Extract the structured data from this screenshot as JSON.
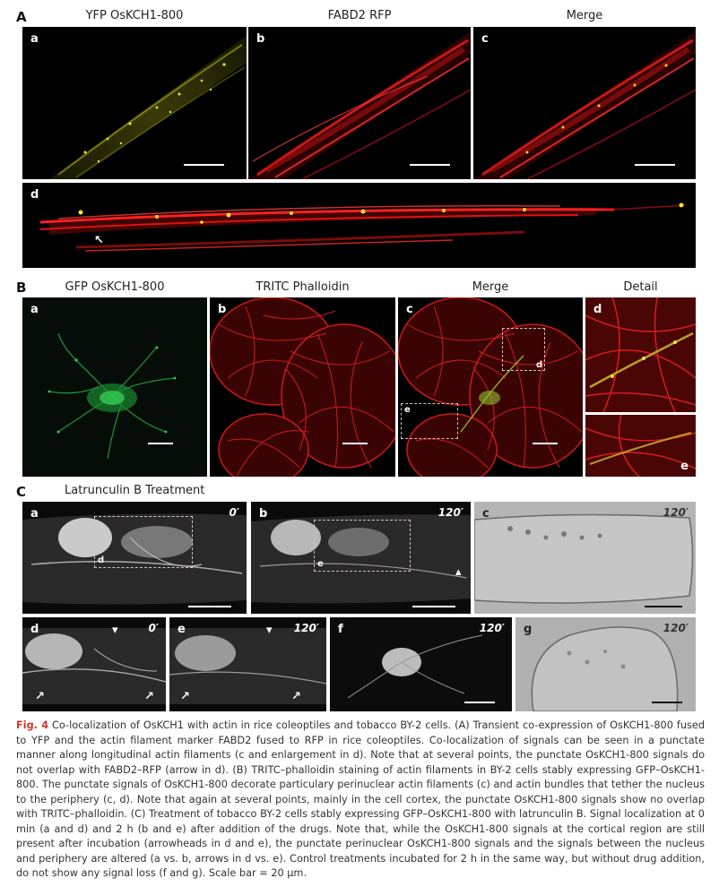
{
  "sectionA": {
    "letter": "A",
    "headers": [
      "YFP OsKCH1-800",
      "FABD2 RFP",
      "Merge"
    ],
    "panels": [
      "a",
      "b",
      "c",
      "d"
    ]
  },
  "sectionB": {
    "letter": "B",
    "headers": [
      "GFP OsKCH1-800",
      "TRITC Phalloidin",
      "Merge",
      "Detail"
    ],
    "panels": [
      "a",
      "b",
      "c",
      "d",
      "e"
    ],
    "box_labels": [
      "d",
      "e"
    ]
  },
  "sectionC": {
    "letter": "C",
    "title": "Latrunculin B Treatment",
    "panels": [
      "a",
      "b",
      "c",
      "d",
      "e",
      "f",
      "g"
    ],
    "times": {
      "a": "0′",
      "b": "120′",
      "c": "120′",
      "d": "0′",
      "e": "120′",
      "f": "120′",
      "g": "120′"
    },
    "box_labels": [
      "d",
      "e"
    ]
  },
  "caption": {
    "figlabel": "Fig. 4",
    "text": " Co-localization of OsKCH1 with actin in rice coleoptiles and tobacco BY-2 cells. (A) Transient co-expression of OsKCH1-800 fused to YFP and the actin filament marker FABD2 fused to RFP in rice coleoptiles. Co-localization of signals can be seen in a punctate manner along longitudinal actin filaments (c and enlargement in d). Note that at several points, the punctate OsKCH1-800 signals do not overlap with FABD2–RFP (arrow in d). (B) TRITC–phalloidin staining of actin filaments in BY-2 cells stably expressing GFP–OsKCH1-800. The punctate signals of OsKCH1-800 decorate particulary perinuclear actin filaments (c) and actin bundles that tether the nucleus to the periphery (c, d). Note that again at several points, mainly in the cell cortex, the punctate OsKCH1-800 signals show no overlap with TRITC–phalloidin. (C) Treatment of tobacco BY-2 cells stably expressing GFP–OsKCH1-800 with latrunculin B. Signal localization at 0 min (a and d) and 2 h (b and e) after addition of the drugs. Note that, while the OsKCH1-800 signals at the cortical region are still present after incubation (arrowheads in d and e), the punctate perinuclear OsKCH1-800 signals and the signals between the nucleus and periphery are altered (a vs. b, arrows in d vs. e). Control treatments incubated for 2 h in the same way, but without drug addition, do not show any signal loss (f and g). Scale bar = 20 μm."
  },
  "colors": {
    "yfp": "#c8c820",
    "rfp": "#e01010",
    "gfp": "#20c040",
    "caption_label": "#d0392b"
  }
}
